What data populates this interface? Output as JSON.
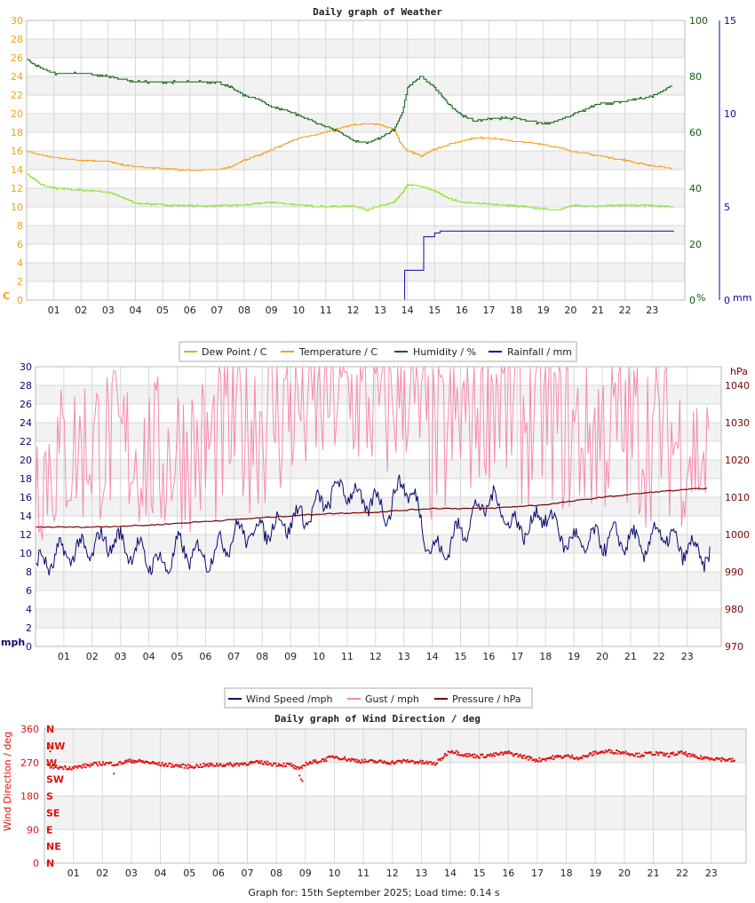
{
  "footer": "Graph for: 15th September 2025; Load time: 0.14 s",
  "colors": {
    "dew_point": "#7fe11a",
    "temperature": "#f0a010",
    "humidity": "#0a5e0a",
    "rainfall": "#0a0aa8",
    "wind_speed": "#0a0a70",
    "gust": "#f58ab0",
    "pressure": "#7a0000",
    "wind_direction": "#e01010",
    "band": "#f2f2f2",
    "grid": "#d8d8d8"
  },
  "chart_data": [
    {
      "type": "line",
      "title": "Daily graph of Weather",
      "x_ticks": [
        "01",
        "02",
        "03",
        "04",
        "05",
        "06",
        "07",
        "08",
        "09",
        "10",
        "11",
        "12",
        "13",
        "14",
        "15",
        "16",
        "17",
        "18",
        "19",
        "20",
        "21",
        "22",
        "23"
      ],
      "y_left": {
        "unit": "C",
        "range": [
          0,
          30
        ],
        "ticks": [
          "0",
          "2",
          "4",
          "6",
          "8",
          "10",
          "12",
          "14",
          "16",
          "18",
          "20",
          "22",
          "24",
          "26",
          "28",
          "30"
        ]
      },
      "y_right_humidity": {
        "unit": "%",
        "range": [
          0,
          100
        ],
        "ticks": [
          "0",
          "20",
          "40",
          "60",
          "80",
          "100"
        ]
      },
      "y_right_rain": {
        "unit": "mm",
        "range": [
          0,
          15
        ],
        "ticks": [
          "0",
          "5",
          "10",
          "15"
        ]
      },
      "grid": true,
      "legend_position": "bottom",
      "legend": [
        "Dew Point / C",
        "Temperature / C",
        "Humidity / %",
        "Rainfall / mm"
      ],
      "series": [
        {
          "name": "Dew Point / C",
          "axis": "left",
          "x": [
            0,
            0.5,
            1,
            2,
            3,
            3.5,
            4,
            5,
            6,
            7,
            8,
            9,
            10,
            11,
            12,
            12.5,
            13,
            13.5,
            13.8,
            14,
            14.5,
            15,
            15.5,
            16,
            17,
            18,
            19,
            19.5,
            20,
            21,
            22,
            23,
            23.8
          ],
          "y": [
            13.6,
            12.4,
            12.0,
            11.8,
            11.6,
            11.0,
            10.4,
            10.2,
            10.1,
            10.1,
            10.2,
            10.5,
            10.2,
            10.0,
            10.1,
            9.7,
            10.1,
            10.5,
            11.5,
            12.4,
            12.2,
            11.7,
            10.9,
            10.5,
            10.3,
            10.1,
            9.8,
            9.7,
            10.1,
            10.1,
            10.2,
            10.1,
            10.0
          ]
        },
        {
          "name": "Temperature / C",
          "axis": "left",
          "x": [
            0,
            1,
            2,
            3,
            3.5,
            4,
            5,
            6,
            7,
            7.5,
            8,
            9,
            10,
            11,
            11.5,
            12,
            12.5,
            13,
            13.5,
            13.8,
            14,
            14.5,
            15,
            16,
            16.5,
            17,
            18,
            19,
            20,
            21,
            22,
            23,
            23.8
          ],
          "y": [
            15.9,
            15.3,
            15.0,
            14.9,
            14.5,
            14.3,
            14.1,
            13.9,
            14.0,
            14.3,
            15.0,
            16.1,
            17.4,
            18.0,
            18.5,
            18.8,
            18.9,
            18.8,
            18.3,
            16.5,
            16.0,
            15.5,
            16.2,
            17.1,
            17.4,
            17.4,
            17.0,
            16.7,
            16.0,
            15.5,
            15.0,
            14.4,
            14.1
          ]
        },
        {
          "name": "Humidity / %",
          "axis": "right_humidity",
          "x": [
            0,
            0.5,
            1,
            2,
            3,
            3.5,
            4,
            5,
            6,
            7,
            7.5,
            8,
            8.5,
            9,
            9.5,
            10,
            10.5,
            11,
            11.5,
            12,
            12.5,
            13,
            13.5,
            13.8,
            14,
            14.5,
            15,
            15.5,
            16,
            16.5,
            17,
            18,
            19,
            19.5,
            20,
            21,
            22,
            23,
            23.8
          ],
          "y": [
            86,
            83,
            81,
            81,
            80,
            79,
            78,
            78,
            78,
            78,
            76,
            73,
            72,
            69,
            68,
            66,
            64,
            62,
            60,
            57,
            56,
            58,
            61,
            67,
            76,
            80,
            76,
            70,
            66,
            64,
            65,
            65,
            63,
            64,
            66,
            70,
            71,
            73,
            77
          ]
        },
        {
          "name": "Rainfall / mm",
          "axis": "right_rain",
          "x": [
            0,
            13.85,
            13.9,
            14.5,
            14.6,
            15.0,
            15.2,
            23.8
          ],
          "y": [
            0,
            0,
            1.6,
            1.6,
            3.4,
            3.6,
            3.7,
            3.7
          ]
        }
      ]
    },
    {
      "type": "line",
      "title": "",
      "x_ticks": [
        "01",
        "02",
        "03",
        "04",
        "05",
        "06",
        "07",
        "08",
        "09",
        "10",
        "11",
        "12",
        "13",
        "14",
        "15",
        "16",
        "17",
        "18",
        "19",
        "20",
        "21",
        "22",
        "23"
      ],
      "y_left": {
        "unit": "mph",
        "range": [
          0,
          30
        ],
        "ticks": [
          "0",
          "2",
          "4",
          "6",
          "8",
          "10",
          "12",
          "14",
          "16",
          "18",
          "20",
          "22",
          "24",
          "26",
          "28",
          "30"
        ]
      },
      "y_right": {
        "unit": "hPa",
        "range": [
          970,
          1045
        ],
        "ticks": [
          "970",
          "980",
          "990",
          "1000",
          "1010",
          "1020",
          "1030",
          "1040"
        ]
      },
      "grid": true,
      "legend_position": "bottom",
      "legend": [
        "Wind Speed /mph",
        "Gust / mph",
        "Pressure / hPa"
      ],
      "series": [
        {
          "name": "Wind Speed /mph",
          "axis": "left",
          "x": [
            0,
            1,
            2,
            2.5,
            3,
            4,
            4.5,
            5,
            6,
            6.5,
            7,
            8,
            9,
            9.5,
            10,
            10.5,
            11,
            11.5,
            12,
            12.5,
            13,
            13.5,
            14,
            14.5,
            15,
            15.5,
            16,
            16.5,
            17,
            17.5,
            18,
            18.5,
            19,
            20,
            21,
            21.5,
            22,
            22.5,
            23,
            23.8
          ],
          "y": [
            8.5,
            10.0,
            10.5,
            11.5,
            11.0,
            9.5,
            8.5,
            10.5,
            9.5,
            10.5,
            12.0,
            12.5,
            13.5,
            14.0,
            15.0,
            16.5,
            17.0,
            15.5,
            15.5,
            14.5,
            18.0,
            14.5,
            10.0,
            10.5,
            12.5,
            14.0,
            16.0,
            14.5,
            12.5,
            13.0,
            14.5,
            12.0,
            11.0,
            11.5,
            11.5,
            10.5,
            12.5,
            11.0,
            10.5,
            9.5
          ]
        },
        {
          "name": "Gust / mph",
          "axis": "left",
          "x": [
            0,
            1,
            2,
            3,
            4,
            5,
            6,
            7,
            8,
            9,
            10,
            11,
            12,
            13,
            14,
            15,
            16,
            17,
            18,
            19,
            20,
            21,
            22,
            23,
            23.8
          ],
          "y": [
            17,
            19,
            21,
            20,
            19,
            20,
            20,
            24,
            25,
            27,
            26,
            25,
            24,
            27,
            20,
            24,
            29,
            25,
            24,
            22,
            23,
            23,
            22,
            20,
            18
          ]
        },
        {
          "name": "Pressure / hPa",
          "axis": "right",
          "x": [
            0,
            2,
            4,
            6,
            8,
            10,
            12,
            14,
            16,
            18,
            20,
            22,
            23.8
          ],
          "y": [
            1002,
            1002,
            1002.5,
            1003.5,
            1004.5,
            1005.5,
            1006,
            1007,
            1007,
            1008,
            1010,
            1011.5,
            1012.5
          ]
        }
      ]
    },
    {
      "type": "scatter",
      "title": "Daily graph of Wind Direction / deg",
      "x_ticks": [
        "01",
        "02",
        "03",
        "04",
        "05",
        "06",
        "07",
        "08",
        "09",
        "10",
        "11",
        "12",
        "13",
        "14",
        "15",
        "16",
        "17",
        "18",
        "19",
        "20",
        "21",
        "22",
        "23"
      ],
      "y_left": {
        "label": "Wind Direction / deg",
        "range": [
          0,
          360
        ],
        "ticks": [
          "0",
          "90",
          "180",
          "270",
          "360"
        ]
      },
      "compass_labels": [
        "N",
        "NE",
        "E",
        "SE",
        "S",
        "SW",
        "W",
        "NW",
        "N"
      ],
      "grid": true,
      "series": [
        {
          "name": "",
          "x": [
            0,
            0.5,
            1,
            1.5,
            2,
            2.5,
            3,
            3.5,
            4,
            4.5,
            5,
            5.5,
            6,
            6.5,
            7,
            7.5,
            8,
            8.5,
            8.8,
            9,
            9.5,
            10,
            10.5,
            11,
            11.5,
            12,
            12.5,
            13,
            13.5,
            14,
            14.5,
            15,
            15.5,
            16,
            16.5,
            17,
            17.5,
            18,
            18.5,
            19,
            19.5,
            20,
            20.5,
            21,
            21.5,
            22,
            22.5,
            23,
            23.8
          ],
          "y": [
            262,
            257,
            256,
            262,
            268,
            266,
            275,
            271,
            265,
            262,
            259,
            262,
            264,
            264,
            268,
            270,
            265,
            263,
            250,
            267,
            274,
            286,
            278,
            273,
            272,
            270,
            274,
            270,
            267,
            302,
            290,
            287,
            290,
            296,
            286,
            276,
            283,
            287,
            282,
            296,
            300,
            297,
            290,
            295,
            290,
            296,
            283,
            282,
            275
          ]
        }
      ]
    }
  ]
}
